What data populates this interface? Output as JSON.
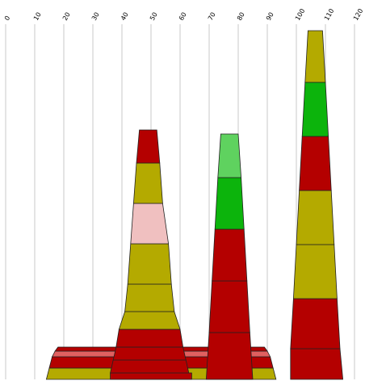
{
  "chart_data": {
    "type": "stacked-tapered-bar",
    "orientation": "vertical-stacks",
    "xlim": [
      0,
      120
    ],
    "x_ticks": [
      0,
      10,
      20,
      30,
      40,
      50,
      60,
      70,
      80,
      90,
      100,
      110,
      120
    ],
    "grid": true,
    "colors": {
      "red": "#b40000",
      "olive": "#b4aa00",
      "pink": "#f0c0c0",
      "lightred": "#e06060",
      "green": "#0cb40c",
      "lightgreen": "#5fd25f"
    },
    "stacks": [
      {
        "name": "",
        "segments": [
          {
            "x0": 14,
            "x1": 93,
            "top_x0": 15,
            "top_x1": 92,
            "height": 14,
            "color": "olive"
          },
          {
            "x0": 15,
            "x1": 92,
            "top_x0": 16,
            "top_x1": 91,
            "height": 14,
            "color": "red"
          },
          {
            "x0": 16,
            "x1": 91,
            "top_x0": 17,
            "top_x1": 90,
            "height": 7,
            "color": "lightred"
          },
          {
            "x0": 17,
            "x1": 90,
            "top_x0": 18,
            "top_x1": 89,
            "height": 5,
            "color": "red"
          }
        ]
      },
      {
        "name": "",
        "segments": [
          {
            "x0": 36,
            "x1": 64,
            "top_x0": 36,
            "top_x1": 64,
            "height": 8,
            "color": "red"
          },
          {
            "x0": 36,
            "x1": 63,
            "top_x0": 37,
            "top_x1": 62,
            "height": 16,
            "color": "red"
          },
          {
            "x0": 37,
            "x1": 62,
            "top_x0": 38,
            "top_x1": 61,
            "height": 16,
            "color": "red"
          },
          {
            "x0": 38,
            "x1": 61,
            "top_x0": 39,
            "top_x1": 60,
            "height": 22,
            "color": "red"
          },
          {
            "x0": 39,
            "x1": 60,
            "top_x0": 41,
            "top_x1": 58,
            "height": 22,
            "color": "olive"
          },
          {
            "x0": 41,
            "x1": 58,
            "top_x0": 42,
            "top_x1": 57,
            "height": 34,
            "color": "olive"
          },
          {
            "x0": 42,
            "x1": 57,
            "top_x0": 43,
            "top_x1": 56,
            "height": 50,
            "color": "olive"
          },
          {
            "x0": 43,
            "x1": 56,
            "top_x0": 44,
            "top_x1": 54,
            "height": 50,
            "color": "pink"
          },
          {
            "x0": 44,
            "x1": 54,
            "top_x0": 45,
            "top_x1": 53,
            "height": 50,
            "color": "olive"
          },
          {
            "x0": 45,
            "x1": 53,
            "top_x0": 46,
            "top_x1": 52,
            "height": 41,
            "color": "red"
          }
        ]
      },
      {
        "name": "",
        "segments": [
          {
            "x0": 69,
            "x1": 85,
            "top_x0": 70,
            "top_x1": 84,
            "height": 58,
            "color": "red"
          },
          {
            "x0": 70,
            "x1": 84,
            "top_x0": 71,
            "top_x1": 83,
            "height": 64,
            "color": "red"
          },
          {
            "x0": 71,
            "x1": 83,
            "top_x0": 72,
            "top_x1": 82,
            "height": 64,
            "color": "red"
          },
          {
            "x0": 72,
            "x1": 82,
            "top_x0": 73,
            "top_x1": 81,
            "height": 64,
            "color": "green"
          },
          {
            "x0": 73,
            "x1": 81,
            "top_x0": 74,
            "top_x1": 80,
            "height": 54,
            "color": "lightgreen"
          }
        ]
      },
      {
        "name": "",
        "segments": [
          {
            "x0": 98,
            "x1": 116,
            "top_x0": 98,
            "top_x1": 115,
            "height": 38,
            "color": "red"
          },
          {
            "x0": 98,
            "x1": 115,
            "top_x0": 99,
            "top_x1": 114,
            "height": 62,
            "color": "red"
          },
          {
            "x0": 99,
            "x1": 114,
            "top_x0": 100,
            "top_x1": 113,
            "height": 67,
            "color": "olive"
          },
          {
            "x0": 100,
            "x1": 113,
            "top_x0": 101,
            "top_x1": 112,
            "height": 67,
            "color": "olive"
          },
          {
            "x0": 101,
            "x1": 112,
            "top_x0": 102,
            "top_x1": 111,
            "height": 67,
            "color": "red"
          },
          {
            "x0": 102,
            "x1": 111,
            "top_x0": 103,
            "top_x1": 110,
            "height": 67,
            "color": "green"
          },
          {
            "x0": 103,
            "x1": 110,
            "top_x0": 104,
            "top_x1": 109,
            "height": 64,
            "color": "olive"
          }
        ]
      }
    ]
  }
}
